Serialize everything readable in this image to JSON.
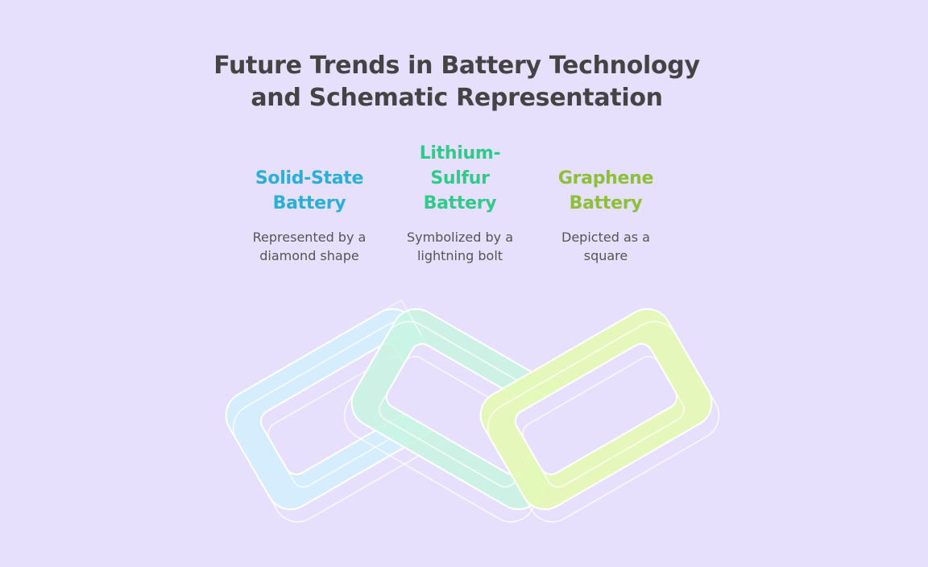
{
  "title": {
    "line1": "Future Trends in Battery Technology",
    "line2": "and Schematic Representation"
  },
  "items": [
    {
      "heading_lines": [
        "Solid-State",
        "Battery"
      ],
      "description_lines": [
        "Represented by a",
        "diamond shape"
      ],
      "color": "#2bafd6",
      "link_fill": "#d3eefc"
    },
    {
      "heading_lines": [
        "Lithium-",
        "Sulfur",
        "Battery"
      ],
      "description_lines": [
        "Symbolized by a",
        "lightning bolt"
      ],
      "color": "#33c98b",
      "link_fill": "#c8f5e0"
    },
    {
      "heading_lines": [
        "Graphene",
        "Battery"
      ],
      "description_lines": [
        "Depicted as a",
        "square"
      ],
      "color": "#8ebf3a",
      "link_fill": "#e5f9b4"
    }
  ],
  "background_color": "#e6e0fd",
  "illustration": "chain-links-icon"
}
